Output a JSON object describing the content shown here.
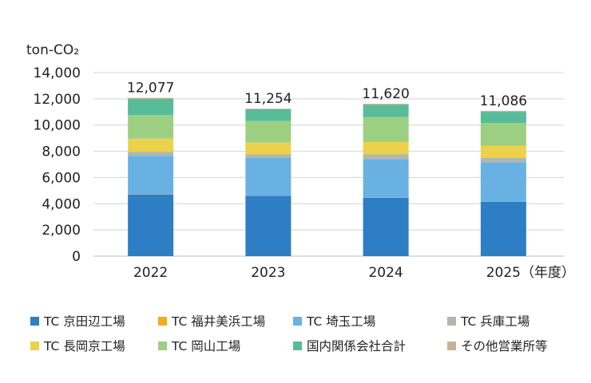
{
  "chart_data": {
    "type": "bar",
    "stacked": true,
    "y_unit_label": "ton-CO₂",
    "x_unit_label": "（年度）",
    "categories": [
      "2022",
      "2023",
      "2024",
      "2025"
    ],
    "totals": [
      "12,077",
      "11,254",
      "11,620",
      "11,086"
    ],
    "ylim": [
      0,
      14000
    ],
    "yticks": [
      0,
      2000,
      4000,
      6000,
      8000,
      10000,
      12000,
      14000
    ],
    "ytick_labels": [
      "0",
      "2,000",
      "4,000",
      "6,000",
      "8,000",
      "10,000",
      "12,000",
      "14,000"
    ],
    "grid": true,
    "legend_position": "bottom",
    "series": [
      {
        "name": "TC 京田辺工場",
        "color": "#2d7ec4",
        "values": [
          4700,
          4600,
          4450,
          4150
        ]
      },
      {
        "name": "TC 福井美浜工場",
        "color": "#f0ad1e",
        "values": [
          10,
          10,
          10,
          10
        ]
      },
      {
        "name": "TC 埼玉工場",
        "color": "#6ab1e3",
        "values": [
          2950,
          2900,
          2950,
          3000
        ]
      },
      {
        "name": "TC 兵庫工場",
        "color": "#b3b7ab",
        "values": [
          300,
          250,
          350,
          350
        ]
      },
      {
        "name": "TC 長岡京工場",
        "color": "#ecd24a",
        "values": [
          1000,
          900,
          950,
          900
        ]
      },
      {
        "name": "TC 岡山工場",
        "color": "#9ccf82",
        "values": [
          1800,
          1650,
          1900,
          1750
        ]
      },
      {
        "name": "国内関係会社合計",
        "color": "#58bc98",
        "values": [
          1250,
          900,
          950,
          850
        ]
      },
      {
        "name": "その他営業所等",
        "color": "#c5b494",
        "values": [
          67,
          44,
          60,
          76
        ]
      }
    ]
  }
}
